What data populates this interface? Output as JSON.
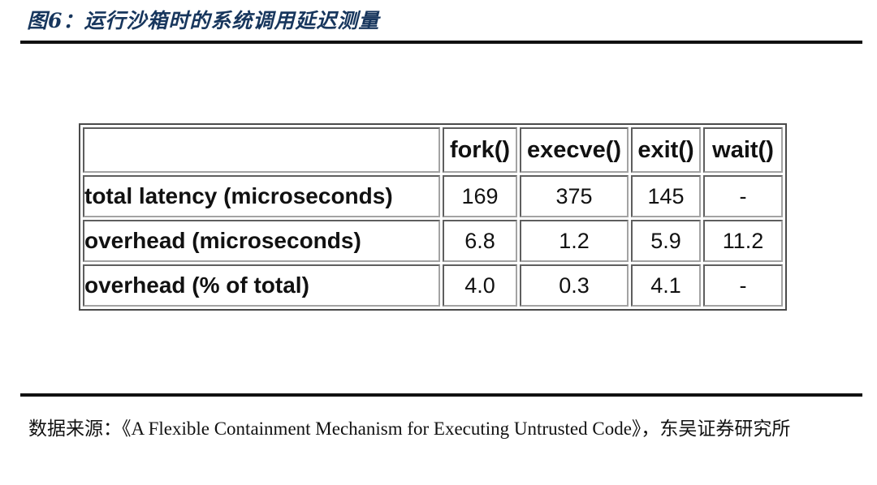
{
  "figure": {
    "title": "图6：运行沙箱时的系统调用延迟测量",
    "source": "数据来源：《A Flexible Containment Mechanism for Executing Untrusted Code》，东吴证券研究所"
  },
  "colors": {
    "title": "#17365d",
    "rule": "#111111",
    "tableBorder": "#4a4a4a",
    "text": "#111111"
  },
  "chart_data": {
    "type": "table",
    "title": "运行沙箱时的系统调用延迟测量",
    "columns": [
      "",
      "fork()",
      "execve()",
      "exit()",
      "wait()"
    ],
    "rows": [
      {
        "label": "total latency (microseconds)",
        "values": [
          "169",
          "375",
          "145",
          "-"
        ]
      },
      {
        "label": "overhead (microseconds)",
        "values": [
          "6.8",
          "1.2",
          "5.9",
          "11.2"
        ]
      },
      {
        "label": "overhead (% of total)",
        "values": [
          "4.0",
          "0.3",
          "4.1",
          "-"
        ]
      }
    ]
  }
}
